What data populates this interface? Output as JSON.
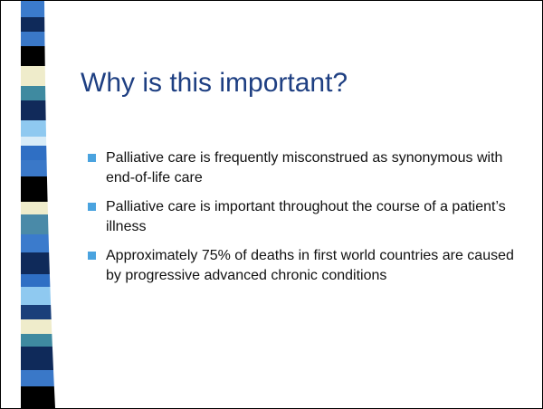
{
  "slide": {
    "title": "Why is this important?",
    "bullets": [
      "Palliative care is frequently misconstrued as synonymous with end-of-life care",
      "Palliative care is important throughout the course of a patient’s illness",
      "Approximately 75% of deaths in first world countries are caused by progressive advanced chronic conditions"
    ]
  }
}
